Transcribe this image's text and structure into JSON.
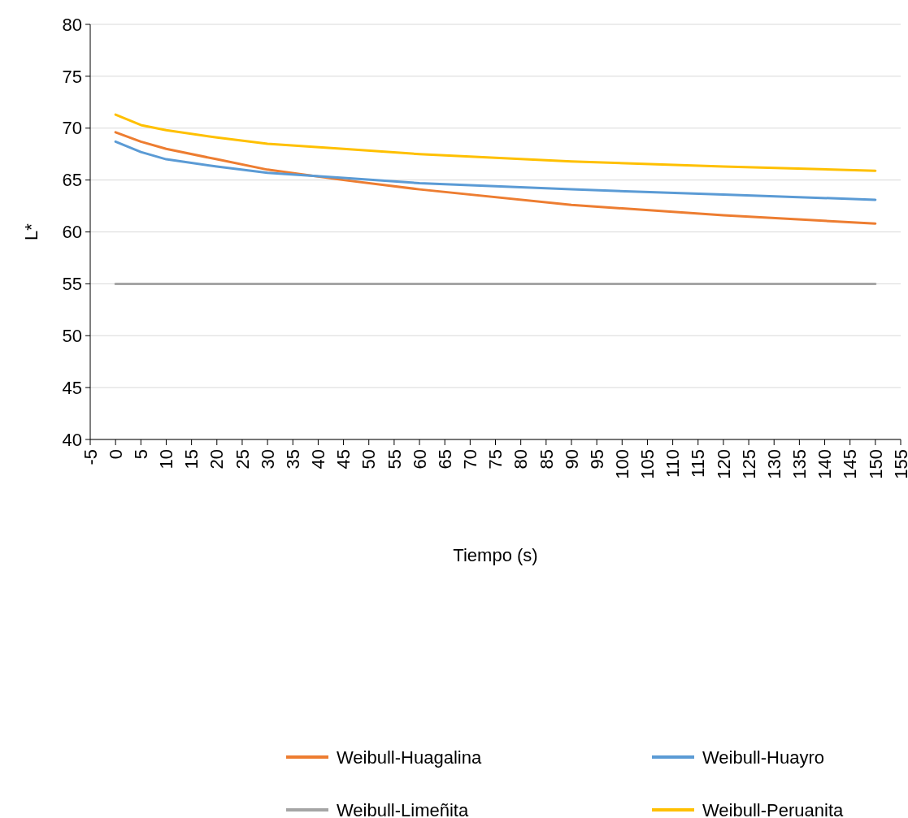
{
  "chart_data": {
    "type": "line",
    "xlabel": "Tiempo (s)",
    "ylabel": "L*",
    "x": [
      0,
      5,
      10,
      20,
      30,
      45,
      60,
      90,
      120,
      150
    ],
    "series": [
      {
        "name": "Weibull-Huagalina",
        "color": "#ed7d31",
        "values": [
          69.6,
          68.7,
          68.0,
          67.0,
          66.0,
          65.0,
          64.1,
          62.6,
          61.6,
          60.8
        ]
      },
      {
        "name": "Weibull-Huayro",
        "color": "#5b9bd5",
        "values": [
          68.7,
          67.7,
          67.0,
          66.3,
          65.7,
          65.2,
          64.7,
          64.1,
          63.6,
          63.1
        ]
      },
      {
        "name": "Weibull-Limeñita",
        "color": "#a5a5a5",
        "values": [
          55,
          55,
          55,
          55,
          55,
          55,
          55,
          55,
          55,
          55
        ]
      },
      {
        "name": "Weibull-Peruanita",
        "color": "#ffc000",
        "values": [
          71.3,
          70.3,
          69.8,
          69.1,
          68.5,
          68.0,
          67.5,
          66.8,
          66.3,
          65.9
        ]
      }
    ],
    "xlim": [
      -5,
      155
    ],
    "xticks": [
      -5,
      0,
      5,
      10,
      15,
      20,
      25,
      30,
      35,
      40,
      45,
      50,
      55,
      60,
      65,
      70,
      75,
      80,
      85,
      90,
      95,
      100,
      105,
      110,
      115,
      120,
      125,
      130,
      135,
      140,
      145,
      150,
      155
    ],
    "ylim": [
      40,
      80
    ],
    "yticks": [
      40,
      45,
      50,
      55,
      60,
      65,
      70,
      75,
      80
    ],
    "grid": "y",
    "legend": "bottom",
    "marker": "none",
    "line_style": "solid"
  }
}
